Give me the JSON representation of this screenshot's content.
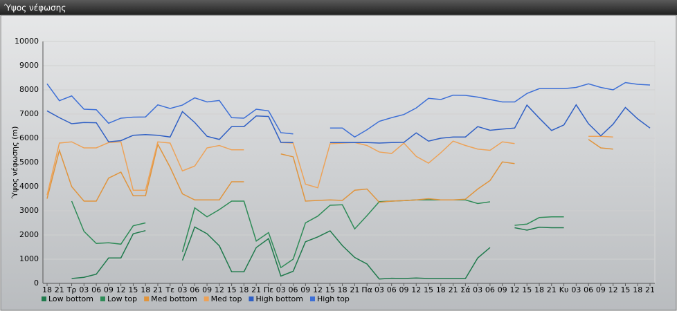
{
  "chart_data": {
    "type": "line",
    "title": "Ύψος νέφωσης",
    "y_label": "Ύψος νέφωσης (m)",
    "categories": [
      "18",
      "21",
      "Τρ",
      "03",
      "06",
      "09",
      "12",
      "15",
      "18",
      "21",
      "Τε",
      "03",
      "06",
      "09",
      "12",
      "15",
      "18",
      "21",
      "Πε",
      "03",
      "06",
      "09",
      "12",
      "15",
      "18",
      "21",
      "Πα",
      "03",
      "06",
      "09",
      "12",
      "15",
      "18",
      "21",
      "Σά",
      "03",
      "06",
      "09",
      "12",
      "15",
      "18",
      "21",
      "Κυ",
      "03",
      "06",
      "09",
      "12",
      "15",
      "18",
      "21"
    ],
    "ylim": [
      0,
      10000
    ],
    "yticks": [
      0,
      1000,
      2000,
      3000,
      4000,
      5000,
      6000,
      7000,
      8000,
      9000,
      10000
    ],
    "grid": true,
    "series": [
      {
        "name": "Low bottom",
        "color": "#1f7a4c",
        "values": [
          null,
          null,
          200,
          250,
          380,
          1050,
          1050,
          2050,
          2180,
          null,
          null,
          950,
          2330,
          2050,
          1550,
          480,
          480,
          1480,
          1850,
          300,
          500,
          1720,
          1920,
          2170,
          1560,
          1070,
          800,
          180,
          210,
          200,
          220,
          200,
          200,
          200,
          200,
          1050,
          1480,
          null,
          2300,
          2200,
          2320,
          2300,
          2300,
          null,
          null,
          null,
          null,
          null,
          null,
          null
        ]
      },
      {
        "name": "Low top",
        "color": "#2e8b57",
        "values": [
          null,
          null,
          3400,
          2150,
          1650,
          1680,
          1620,
          2380,
          2500,
          null,
          null,
          1300,
          3120,
          2750,
          3050,
          3400,
          3400,
          1750,
          2100,
          650,
          1000,
          2500,
          2780,
          3230,
          3250,
          2250,
          2800,
          3380,
          3400,
          3420,
          3450,
          3450,
          3450,
          3450,
          3450,
          3300,
          3370,
          null,
          2400,
          2450,
          2720,
          2750,
          2750,
          null,
          null,
          null,
          null,
          null,
          null,
          null
        ]
      },
      {
        "name": "Med bottom",
        "color": "#e0943c",
        "values": [
          3500,
          5500,
          4000,
          3400,
          3400,
          4350,
          4600,
          3620,
          3620,
          5750,
          4800,
          3700,
          3450,
          3450,
          3450,
          4200,
          4200,
          null,
          null,
          5350,
          5230,
          3400,
          3430,
          3450,
          3430,
          3850,
          3900,
          3350,
          3400,
          3420,
          3450,
          3500,
          3450,
          3450,
          3480,
          3900,
          4250,
          5020,
          4950,
          null,
          null,
          null,
          null,
          null,
          5950,
          5600,
          5550,
          null,
          null,
          null
        ]
      },
      {
        "name": "Med top",
        "color": "#eda257",
        "values": [
          3650,
          5800,
          5850,
          5600,
          5600,
          5820,
          5850,
          3850,
          3850,
          5850,
          5800,
          4650,
          4850,
          5600,
          5700,
          5520,
          5520,
          null,
          null,
          5820,
          5800,
          4100,
          3950,
          5770,
          5800,
          5820,
          5700,
          5430,
          5370,
          5800,
          5250,
          4970,
          5400,
          5880,
          5700,
          5550,
          5500,
          5850,
          5780,
          null,
          null,
          null,
          null,
          null,
          6080,
          6080,
          6050,
          null,
          null,
          null
        ]
      },
      {
        "name": "High bottom",
        "color": "#2f5fc4",
        "values": [
          7130,
          6850,
          6600,
          6650,
          6640,
          5850,
          5900,
          6120,
          6150,
          6120,
          6050,
          7100,
          6650,
          6080,
          5950,
          6480,
          6480,
          6920,
          6900,
          5830,
          5820,
          null,
          null,
          5820,
          5820,
          5820,
          5820,
          5800,
          5820,
          5830,
          6220,
          5880,
          6000,
          6050,
          6050,
          6480,
          6330,
          6380,
          6420,
          7370,
          6830,
          6320,
          6550,
          7380,
          6600,
          6100,
          6580,
          7270,
          6800,
          6420
        ]
      },
      {
        "name": "High top",
        "color": "#3d6fd6",
        "values": [
          8250,
          7550,
          7750,
          7200,
          7180,
          6620,
          6830,
          6870,
          6880,
          7380,
          7230,
          7370,
          7670,
          7500,
          7560,
          6850,
          6830,
          7200,
          7130,
          6230,
          6180,
          null,
          null,
          6420,
          6420,
          6050,
          6350,
          6700,
          6850,
          6980,
          7250,
          7650,
          7600,
          7780,
          7770,
          7700,
          7600,
          7500,
          7500,
          7850,
          8050,
          8050,
          8050,
          8100,
          8250,
          8100,
          8000,
          8300,
          8230,
          8200
        ]
      }
    ]
  }
}
